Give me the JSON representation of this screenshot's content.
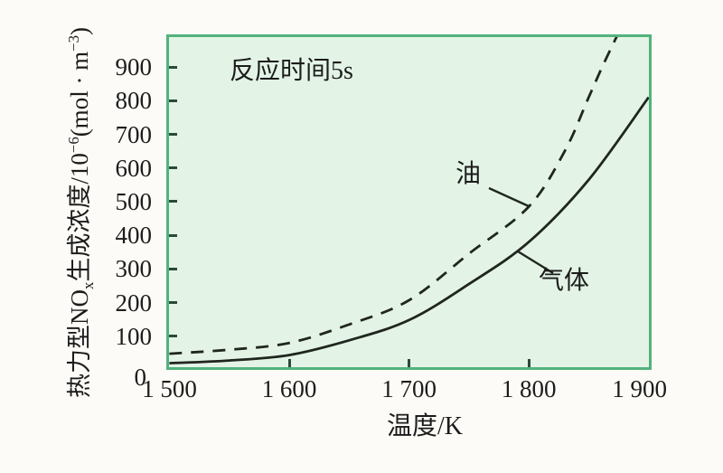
{
  "colors": {
    "page_bg": "#fcfbf7",
    "plot_bg": "#e3f4e6",
    "frame_green": "#53b27d",
    "curve": "#20261f",
    "tick": "#2a4a3a",
    "text": "#1c1c1c"
  },
  "annotation": "反应时间5s",
  "xlabel": "温度/K",
  "ylabel_parts": {
    "p1": "热力型NO",
    "sub": "x",
    "p2": "生成浓度/10",
    "sup1": "−6",
    "p3": "(mol · m",
    "sup2": "−3",
    "p4": ")"
  },
  "chart_data": {
    "type": "line",
    "title": "",
    "annotation": "反应时间5s",
    "xlabel": "温度/K",
    "ylabel": "热力型NOx生成浓度/10^−6 (mol·m^−3)",
    "xlim": [
      1500,
      1900
    ],
    "ylim": [
      0,
      1000
    ],
    "grid": false,
    "legend_position": "inline-labels",
    "x_ticks": [
      {
        "value": 1500,
        "label": "1 500"
      },
      {
        "value": 1600,
        "label": "1 600"
      },
      {
        "value": 1700,
        "label": "1 700"
      },
      {
        "value": 1800,
        "label": "1 800"
      },
      {
        "value": 1900,
        "label": "1 900"
      }
    ],
    "y_ticks": [
      {
        "value": 0,
        "label": "0"
      },
      {
        "value": 100,
        "label": "100"
      },
      {
        "value": 200,
        "label": "200"
      },
      {
        "value": 300,
        "label": "300"
      },
      {
        "value": 400,
        "label": "400"
      },
      {
        "value": 500,
        "label": "500"
      },
      {
        "value": 600,
        "label": "600"
      },
      {
        "value": 700,
        "label": "700"
      },
      {
        "value": 800,
        "label": "800"
      },
      {
        "value": 900,
        "label": "900"
      }
    ],
    "series": [
      {
        "name": "油",
        "style": "dashed",
        "points": [
          [
            1500,
            48
          ],
          [
            1550,
            60
          ],
          [
            1600,
            80
          ],
          [
            1650,
            135
          ],
          [
            1700,
            207
          ],
          [
            1750,
            345
          ],
          [
            1800,
            485
          ],
          [
            1830,
            650
          ],
          [
            1850,
            810
          ],
          [
            1862,
            906
          ],
          [
            1876,
            1010
          ]
        ]
      },
      {
        "name": "气体",
        "style": "solid",
        "points": [
          [
            1500,
            20
          ],
          [
            1550,
            28
          ],
          [
            1600,
            44
          ],
          [
            1650,
            88
          ],
          [
            1700,
            148
          ],
          [
            1750,
            255
          ],
          [
            1800,
            380
          ],
          [
            1850,
            565
          ],
          [
            1900,
            810
          ]
        ]
      }
    ]
  }
}
